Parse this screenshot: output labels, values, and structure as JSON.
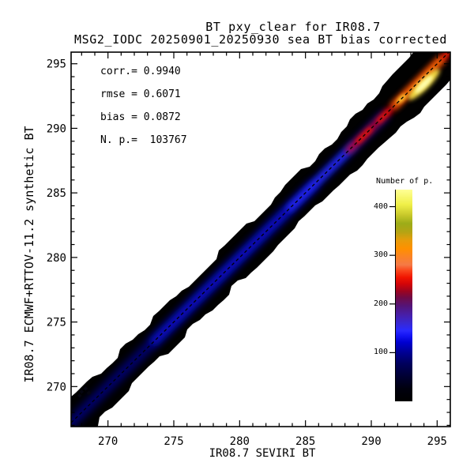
{
  "title": {
    "line1": "BT pxy_clear for IR08.7",
    "line2": "MSG2_IODC 20250901_20250930 sea BT bias corrected"
  },
  "stats_panel": {
    "corr": "corr.= 0.9940",
    "rmse": "rmse = 0.6071",
    "bias": "bias = 0.0872",
    "npoints": "N. p.=  103767"
  },
  "chart_data": {
    "type": "heatmap",
    "subtype": "density_scatter_2d_histogram",
    "title": "BT pxy_clear for IR08.7",
    "subtitle": "MSG2_IODC 20250901_20250930 sea BT bias corrected",
    "xlabel": "IR08.7 SEVIRI BT",
    "ylabel": "IR08.7 ECMWF+RTTOV-11.2 synthetic BT",
    "xlim": [
      267.2,
      296.0
    ],
    "ylim": [
      266.9,
      295.9
    ],
    "xticks": [
      270,
      275,
      280,
      285,
      290,
      295
    ],
    "yticks": [
      270,
      275,
      280,
      285,
      290,
      295
    ],
    "minor_tick_step": 1,
    "grid": false,
    "stats": {
      "corr": 0.994,
      "rmse": 0.6071,
      "bias": 0.0872,
      "n_points": 103767
    },
    "relationship": "dense diagonal band along y = x from ~267 K to ~296 K, half-width ~1.1 K",
    "identity_line": {
      "style": "dashed",
      "from": 267.0,
      "to": 296.0
    },
    "band": {
      "halfwidth_k_start": 1.05,
      "halfwidth_k_end": 1.35,
      "base_color": "#010101",
      "core_segments": [
        {
          "from": 266.9,
          "to": 285.6,
          "color": "#000078",
          "count": 60,
          "w": 13,
          "blur": 5,
          "op": 0.95
        },
        {
          "from": 273.5,
          "to": 291.0,
          "color": "#0a14dc",
          "count": 110,
          "w": 10,
          "blur": 5,
          "op": 0.9
        },
        {
          "from": 283.8,
          "to": 288.7,
          "color": "#2a30ff",
          "count": 140,
          "w": 7,
          "blur": 4,
          "op": 0.9
        },
        {
          "from": 288.3,
          "to": 295.8,
          "color": "#c80010",
          "count": 220,
          "w": 8,
          "blur": 4,
          "op": 0.95
        },
        {
          "from": 289.0,
          "to": 289.9,
          "color": "#e81400",
          "count": 240,
          "w": 6,
          "blur": 3,
          "op": 0.9
        },
        {
          "from": 290.6,
          "to": 291.3,
          "color": "#e81400",
          "count": 240,
          "w": 6,
          "blur": 3,
          "op": 0.9
        },
        {
          "from": 291.8,
          "to": 295.3,
          "color": "#ff7700",
          "count": 310,
          "w": 9,
          "blur": 4,
          "op": 0.95
        },
        {
          "from": 295.4,
          "to": 295.9,
          "color": "#dd2200",
          "count": 250,
          "w": 5,
          "blur": 2,
          "op": 0.9
        }
      ],
      "hotspot": {
        "x": 294.0,
        "y": 293.4,
        "peak_count": 435,
        "outer_color": "#ffe84a",
        "inner_color": "#ffffb4"
      },
      "secondary_spot": {
        "v": 292.3,
        "color": "#ffc830"
      }
    },
    "outlier_points": [
      [
        268.0,
        269.6
      ],
      [
        268.3,
        269.85
      ],
      [
        268.55,
        269.5
      ],
      [
        267.85,
        269.3
      ]
    ],
    "colorbar": {
      "title": "Number of p.",
      "ticks": [
        100,
        200,
        300,
        400
      ],
      "range": [
        0,
        435
      ],
      "stops": [
        [
          0.0,
          "#000000"
        ],
        [
          0.06,
          "#00000e"
        ],
        [
          0.12,
          "#000034"
        ],
        [
          0.18,
          "#00005e"
        ],
        [
          0.23,
          "#000092"
        ],
        [
          0.28,
          "#0000d2"
        ],
        [
          0.31,
          "#1414f4"
        ],
        [
          0.335,
          "#2a2aff"
        ],
        [
          0.37,
          "#3828d2"
        ],
        [
          0.41,
          "#481ea6"
        ],
        [
          0.45,
          "#541478"
        ],
        [
          0.49,
          "#700a46"
        ],
        [
          0.52,
          "#9c0420"
        ],
        [
          0.555,
          "#d40408"
        ],
        [
          0.585,
          "#f01400"
        ],
        [
          0.62,
          "#fa4a1e"
        ],
        [
          0.645,
          "#f57a46"
        ],
        [
          0.68,
          "#fa8228"
        ],
        [
          0.72,
          "#ff9000"
        ],
        [
          0.76,
          "#e89c0a"
        ],
        [
          0.8,
          "#b4a414"
        ],
        [
          0.84,
          "#9cac18"
        ],
        [
          0.88,
          "#c8c82a"
        ],
        [
          0.93,
          "#f0f048"
        ],
        [
          1.0,
          "#ffff96"
        ]
      ],
      "legend_position": "right"
    }
  }
}
